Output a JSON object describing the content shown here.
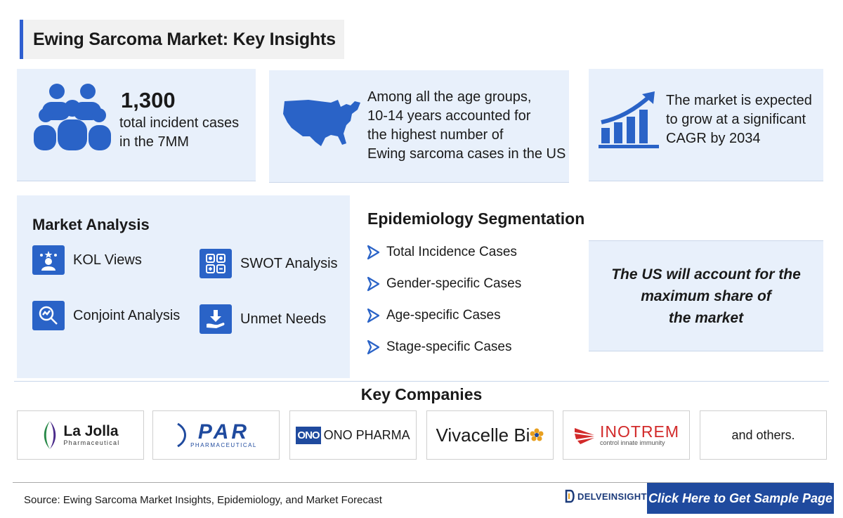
{
  "title": "Ewing Sarcoma Market: Key Insights",
  "insights": {
    "incident": {
      "number": "1,300",
      "line1": "total incident cases",
      "line2": "in the 7MM",
      "icon": "people-group-icon"
    },
    "age": {
      "lines": [
        "Among all the age groups,",
        "10-14 years accounted for",
        "the highest number of",
        "Ewing sarcoma cases in the US"
      ],
      "icon": "us-map-icon"
    },
    "growth": {
      "lines": [
        "The market is expected",
        "to grow at a significant",
        "CAGR by 2034"
      ],
      "icon": "growth-chart-icon"
    }
  },
  "market_analysis": {
    "title": "Market Analysis",
    "items": [
      {
        "label": "KOL Views",
        "icon": "kol-person-icon"
      },
      {
        "label": "SWOT Analysis",
        "icon": "swot-grid-icon"
      },
      {
        "label": "Conjoint Analysis",
        "icon": "magnifier-chart-icon"
      },
      {
        "label": "Unmet Needs",
        "icon": "hand-download-icon"
      }
    ]
  },
  "epidemiology": {
    "title": "Epidemiology Segmentation",
    "items": [
      "Total Incidence Cases",
      "Gender-specific Cases",
      "Age-specific Cases",
      "Stage-specific Cases"
    ]
  },
  "us_share": {
    "line1": "The US will account for the",
    "line2": "maximum share of",
    "line3": "the market"
  },
  "key_companies": {
    "title": "Key Companies",
    "companies": [
      {
        "name": "La Jolla",
        "sub": "Pharmaceutical"
      },
      {
        "name": "PAR",
        "sub": "PHARMACEUTICAL"
      },
      {
        "badge": "ONO",
        "name": "ONO PHARMA"
      },
      {
        "name": "Vivacelle Bi"
      },
      {
        "name": "INOTREM",
        "sub": "control innate immunity"
      },
      {
        "name": "and others."
      }
    ]
  },
  "footer": {
    "source": "Source: Ewing Sarcoma Market Insights, Epidemiology, and Market Forecast",
    "brand": "DELVEINSIGHT",
    "cta": "Click Here to Get Sample Page"
  },
  "colors": {
    "accent": "#2f5fd0",
    "icon_blue": "#2a63c7",
    "panel": "#e8f0fb",
    "cta": "#1f4a9e"
  }
}
